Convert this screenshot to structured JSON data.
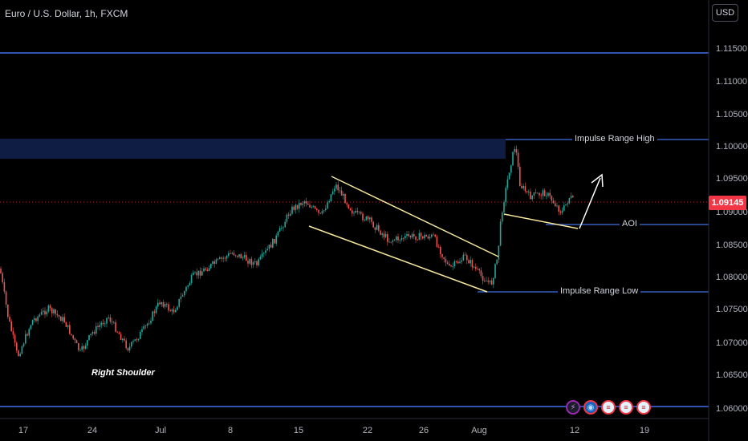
{
  "header": {
    "title": "Euro / U.S. Dollar, 1h, FXCM",
    "currency": "USD"
  },
  "price_axis": {
    "labels": [
      "1.11500",
      "1.11000",
      "1.10500",
      "1.10000",
      "1.09500",
      "1.09000",
      "1.08500",
      "1.08000",
      "1.07500",
      "1.07000",
      "1.06500",
      "1.06000"
    ],
    "current_price": "1.09145"
  },
  "time_axis": {
    "labels": [
      "17",
      "24",
      "Jul",
      "8",
      "15",
      "22",
      "26",
      "Aug",
      "12",
      "19"
    ]
  },
  "annotations": {
    "impulse_high": "Impulse Range High",
    "aoi": "AOI",
    "impulse_low": "Impulse Range Low",
    "right_shoulder": "Right Shoulder"
  },
  "events": [
    {
      "icon": "lightning-icon",
      "symbol": "⚡"
    },
    {
      "icon": "globe-icon",
      "symbol": "◉"
    },
    {
      "icon": "us-flag-icon",
      "symbol": "≡"
    },
    {
      "icon": "us-flag-icon",
      "symbol": "≡"
    },
    {
      "icon": "us-flag-icon",
      "symbol": "≡"
    }
  ],
  "colors": {
    "up": "#26a69a",
    "down": "#ef5350",
    "level_line": "#3f6fe8",
    "channel": "#f5e79e",
    "zone": "#0f1d44",
    "price_tag": "#f23645"
  }
}
